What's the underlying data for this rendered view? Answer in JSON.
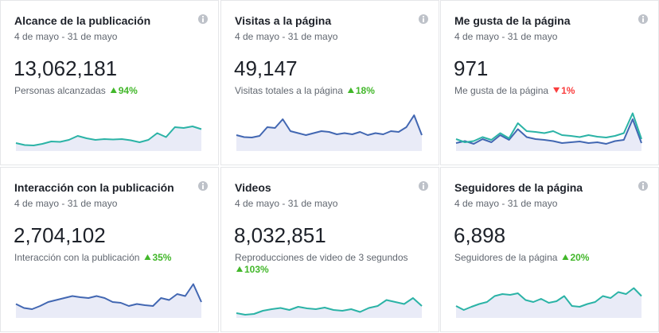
{
  "spark_ylim": [
    0,
    100
  ],
  "cards": [
    {
      "title": "Alcance de la publicación",
      "date": "4 de mayo - 31 de mayo",
      "value": "13,062,181",
      "subtitle": "Personas alcanzadas",
      "change": "94%",
      "direction": "up",
      "series": [
        {
          "color": "#2bb3a6",
          "values": [
            20,
            15,
            14,
            18,
            24,
            23,
            28,
            38,
            32,
            28,
            30,
            29,
            30,
            27,
            22,
            28,
            45,
            35,
            60,
            58,
            62,
            55
          ]
        }
      ]
    },
    {
      "title": "Visitas a la página",
      "date": "4 de mayo - 31 de mayo",
      "value": "49,147",
      "subtitle": "Visitas totales a la página",
      "change": "18%",
      "direction": "up",
      "series": [
        {
          "color": "#4267b2",
          "values": [
            40,
            35,
            34,
            38,
            60,
            58,
            80,
            50,
            45,
            40,
            45,
            50,
            48,
            42,
            45,
            42,
            48,
            40,
            45,
            42,
            50,
            48,
            60,
            90,
            40
          ]
        }
      ]
    },
    {
      "title": "Me gusta de la página",
      "date": "4 de mayo - 31 de mayo",
      "value": "971",
      "subtitle": "Me gusta de la página",
      "change": "1%",
      "direction": "down",
      "series": [
        {
          "color": "#4267b2",
          "values": [
            20,
            25,
            18,
            30,
            22,
            40,
            28,
            55,
            35,
            30,
            28,
            25,
            20,
            22,
            24,
            20,
            22,
            18,
            25,
            28,
            80,
            20
          ]
        },
        {
          "color": "#2bb3a6",
          "values": [
            30,
            22,
            25,
            35,
            28,
            45,
            32,
            70,
            50,
            48,
            45,
            50,
            40,
            38,
            35,
            40,
            36,
            34,
            38,
            45,
            95,
            30
          ]
        }
      ]
    },
    {
      "title": "Interacción con la publicación",
      "date": "4 de mayo - 31 de mayo",
      "value": "2,704,102",
      "subtitle": "Interacción con la publicación",
      "change": "35%",
      "direction": "up",
      "series": [
        {
          "color": "#4267b2",
          "values": [
            35,
            25,
            22,
            30,
            40,
            45,
            50,
            55,
            52,
            50,
            55,
            50,
            40,
            38,
            30,
            35,
            32,
            30,
            50,
            45,
            60,
            55,
            85,
            40
          ]
        }
      ]
    },
    {
      "title": "Videos",
      "date": "4 de mayo - 31 de mayo",
      "value": "8,032,851",
      "subtitle": "Reproducciones de video de 3 segundos",
      "change": "103%",
      "direction": "up",
      "series": [
        {
          "color": "#2bb3a6",
          "values": [
            12,
            8,
            10,
            18,
            22,
            25,
            20,
            28,
            24,
            22,
            26,
            20,
            18,
            22,
            15,
            25,
            30,
            45,
            40,
            35,
            50,
            30
          ]
        }
      ]
    },
    {
      "title": "Seguidores de la página",
      "date": "4 de mayo - 31 de mayo",
      "value": "6,898",
      "subtitle": "Seguidores de la página",
      "change": "20%",
      "direction": "up",
      "series": [
        {
          "color": "#2bb3a6",
          "values": [
            30,
            20,
            28,
            35,
            40,
            55,
            60,
            58,
            62,
            45,
            40,
            48,
            38,
            42,
            55,
            30,
            28,
            35,
            40,
            55,
            50,
            65,
            60,
            75,
            55
          ]
        }
      ]
    }
  ]
}
